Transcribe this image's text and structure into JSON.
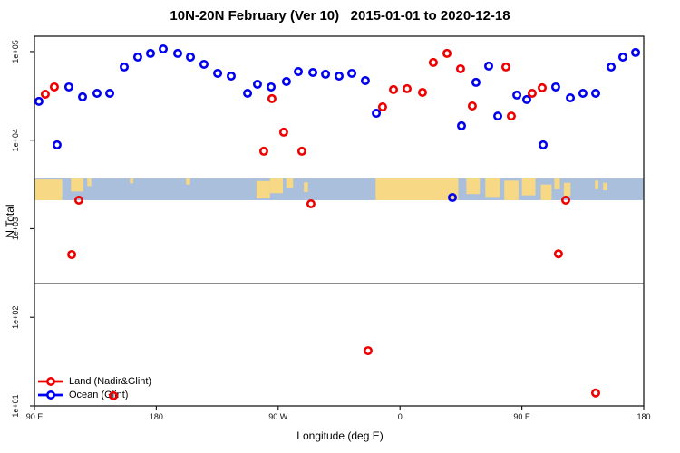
{
  "title": "10N-20N February (Ver 10)   2015-01-01 to 2020-12-18",
  "legend": {
    "items": [
      {
        "label": "Land (Nadir&Glint)",
        "color": "#EE0000"
      },
      {
        "label": "Ocean (Glint)",
        "color": "#0000EE"
      }
    ]
  },
  "chart_data": {
    "type": "scatter",
    "title": "10N-20N February (Ver 10)   2015-01-01 to 2020-12-18",
    "xlabel": "Longitude (deg E)",
    "ylabel": "N Total",
    "x_axis": {
      "range": [
        90,
        540
      ],
      "tick_values": [
        90,
        180,
        270,
        360,
        450,
        540
      ],
      "tick_labels": [
        "90 E",
        "180",
        "90 W",
        "0",
        "90 E",
        "180"
      ]
    },
    "y_axis": {
      "scale": "log",
      "range": [
        10,
        149000
      ],
      "tick_values": [
        10,
        100,
        1000,
        10000,
        100000
      ],
      "tick_labels": [
        "1e+01",
        "1e+02",
        "1e+03",
        "1e+04",
        "1e+05"
      ]
    },
    "threshold_line": {
      "n": 240,
      "color": "#8C8C8C"
    },
    "map_band": {
      "n_low": 2100,
      "n_high": 3700,
      "ocean_color": "#A9BFDC",
      "land_color": "#F7D985",
      "land_segments": [
        {
          "from": 90,
          "to": 110.5,
          "top": 0.05,
          "h": 0.95
        },
        {
          "from": 117,
          "to": 126,
          "top": 0,
          "h": 0.6
        },
        {
          "from": 129,
          "to": 132,
          "top": 0,
          "h": 0.35
        },
        {
          "from": 160.5,
          "to": 163,
          "top": 0,
          "h": 0.22
        },
        {
          "from": 202,
          "to": 205,
          "top": 0,
          "h": 0.28
        },
        {
          "from": 254,
          "to": 264,
          "top": 0.12,
          "h": 0.8
        },
        {
          "from": 264,
          "to": 273.5,
          "top": 0,
          "h": 0.68
        },
        {
          "from": 276,
          "to": 281,
          "top": 0,
          "h": 0.45
        },
        {
          "from": 289,
          "to": 292,
          "top": 0.18,
          "h": 0.45
        },
        {
          "from": 342,
          "to": 403,
          "top": 0,
          "h": 1
        },
        {
          "from": 409,
          "to": 419,
          "top": 0,
          "h": 0.72
        },
        {
          "from": 423,
          "to": 434,
          "top": 0,
          "h": 0.85
        },
        {
          "from": 437,
          "to": 447.5,
          "top": 0.1,
          "h": 0.9
        },
        {
          "from": 450,
          "to": 460,
          "top": 0,
          "h": 0.78
        },
        {
          "from": 464,
          "to": 472,
          "top": 0.28,
          "h": 0.72
        },
        {
          "from": 474,
          "to": 478,
          "top": 0,
          "h": 0.5
        },
        {
          "from": 481,
          "to": 486,
          "top": 0.2,
          "h": 0.6
        },
        {
          "from": 504,
          "to": 506.5,
          "top": 0.1,
          "h": 0.4
        },
        {
          "from": 510,
          "to": 513,
          "top": 0.2,
          "h": 0.35
        }
      ]
    },
    "series": [
      {
        "name": "Ocean (Glint)",
        "color": "#0000EE",
        "points": [
          [
            93.3,
            27400
          ],
          [
            106.7,
            8840
          ],
          [
            115.4,
            39900
          ],
          [
            125.5,
            30800
          ],
          [
            136.2,
            33800
          ],
          [
            145.6,
            33800
          ],
          [
            156.3,
            67000
          ],
          [
            166.3,
            86800
          ],
          [
            175.7,
            95400
          ],
          [
            185.1,
            107000
          ],
          [
            195.8,
            95400
          ],
          [
            205.2,
            86800
          ],
          [
            215.2,
            71900
          ],
          [
            225.3,
            56800
          ],
          [
            235.3,
            52900
          ],
          [
            247.4,
            33800
          ],
          [
            254.7,
            42800
          ],
          [
            264.8,
            39900
          ],
          [
            276.1,
            45900
          ],
          [
            284.9,
            59500
          ],
          [
            295.6,
            58100
          ],
          [
            305.0,
            55500
          ],
          [
            315.0,
            52900
          ],
          [
            324.4,
            56800
          ],
          [
            334.4,
            47000
          ],
          [
            342.5,
            20100
          ],
          [
            398.7,
            2250
          ],
          [
            405.4,
            14500
          ],
          [
            416.1,
            44900
          ],
          [
            425.5,
            68600
          ],
          [
            432.2,
            18700
          ],
          [
            446.3,
            32300
          ],
          [
            453.6,
            28700
          ],
          [
            465.7,
            8840
          ],
          [
            475.0,
            39900
          ],
          [
            485.8,
            30000
          ],
          [
            495.1,
            33800
          ],
          [
            504.5,
            33800
          ],
          [
            515.9,
            67000
          ],
          [
            524.6,
            86800
          ],
          [
            534.0,
            97700
          ]
        ]
      },
      {
        "name": "Land (Nadir&Glint)",
        "color": "#EE0000",
        "points": [
          [
            98.0,
            33000
          ],
          [
            104.7,
            39900
          ],
          [
            122.8,
            2100
          ],
          [
            117.5,
            510
          ],
          [
            148.3,
            13
          ],
          [
            259.4,
            7500
          ],
          [
            265.4,
            29400
          ],
          [
            274.1,
            12300
          ],
          [
            287.5,
            7500
          ],
          [
            294.2,
            1910
          ],
          [
            336.4,
            42
          ],
          [
            347.1,
            23700
          ],
          [
            355.2,
            37200
          ],
          [
            365.2,
            38100
          ],
          [
            376.6,
            34600
          ],
          [
            384.6,
            75400
          ],
          [
            394.7,
            95400
          ],
          [
            404.7,
            63900
          ],
          [
            413.4,
            24300
          ],
          [
            438.2,
            67000
          ],
          [
            442.2,
            18700
          ],
          [
            457.6,
            33800
          ],
          [
            465.0,
            39000
          ],
          [
            477.0,
            520
          ],
          [
            482.4,
            2100
          ],
          [
            504.5,
            14
          ]
        ]
      }
    ]
  }
}
